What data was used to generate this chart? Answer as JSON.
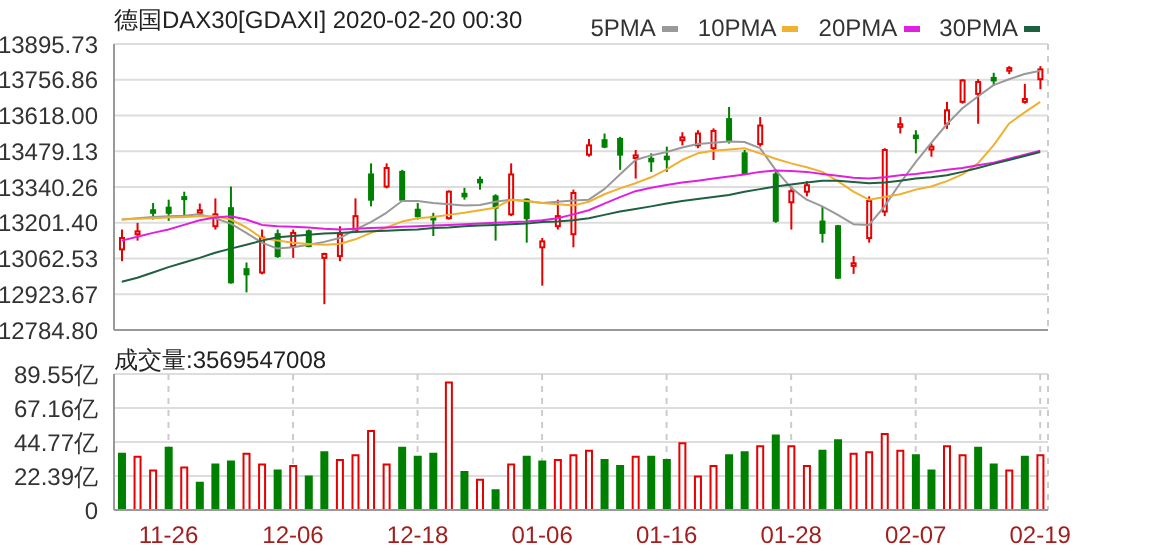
{
  "chart_data": [
    {
      "type": "candlestick",
      "title": "德国DAX30[GDAXI] 2020-02-20 00:30",
      "categories": [
        null,
        null,
        null,
        null,
        null,
        null,
        null,
        null,
        null,
        null,
        null,
        null,
        null,
        null,
        null,
        null,
        null,
        null,
        null,
        null,
        null,
        null,
        null,
        null,
        null,
        null,
        null,
        null,
        null,
        null,
        null,
        null,
        null,
        null,
        null,
        null,
        null,
        null,
        null,
        null,
        null,
        null,
        null,
        null,
        null,
        null,
        null,
        null,
        null,
        null,
        null,
        null,
        null,
        null,
        null,
        null,
        null,
        null,
        null,
        null
      ],
      "ohlc": [
        [
          13098,
          13175,
          13052,
          13142
        ],
        [
          13157,
          13201,
          13132,
          13168
        ],
        [
          13250,
          13278,
          13214,
          13240
        ],
        [
          13260,
          13291,
          13209,
          13240
        ],
        [
          13301,
          13322,
          13224,
          13294
        ],
        [
          13240,
          13276,
          13224,
          13250
        ],
        [
          13188,
          13296,
          13175,
          13234
        ],
        [
          13258,
          13342,
          12965,
          12970
        ],
        [
          13021,
          13047,
          12931,
          13001
        ],
        [
          13008,
          13175,
          13001,
          13144
        ],
        [
          13157,
          13175,
          13065,
          13072
        ],
        [
          13111,
          13175,
          13065,
          13162
        ],
        [
          13168,
          13175,
          13106,
          13111
        ],
        [
          13065,
          13085,
          12885,
          13080
        ],
        [
          13072,
          13188,
          13052,
          13157
        ],
        [
          13173,
          13296,
          13162,
          13227
        ],
        [
          13389,
          13432,
          13265,
          13291
        ],
        [
          13342,
          13432,
          13335,
          13414
        ],
        [
          13399,
          13407,
          13283,
          13291
        ],
        [
          13252,
          13278,
          13214,
          13227
        ],
        [
          13224,
          13240,
          13150,
          13214
        ],
        [
          13219,
          13327,
          13214,
          13322
        ],
        [
          13314,
          13337,
          13291,
          13304
        ],
        [
          13368,
          13381,
          13330,
          13358
        ],
        [
          13304,
          13312,
          13132,
          13260
        ],
        [
          13234,
          13432,
          13227,
          13389
        ],
        [
          13291,
          13296,
          13124,
          13219
        ],
        [
          13106,
          13142,
          12957,
          13129
        ],
        [
          13188,
          13291,
          13175,
          13227
        ],
        [
          13157,
          13330,
          13106,
          13317
        ],
        [
          13466,
          13527,
          13458,
          13502
        ],
        [
          13522,
          13548,
          13491,
          13497
        ],
        [
          13527,
          13535,
          13407,
          13466
        ],
        [
          13453,
          13484,
          13373,
          13463
        ],
        [
          13450,
          13471,
          13399,
          13440
        ],
        [
          13458,
          13497,
          13399,
          13448
        ],
        [
          13522,
          13553,
          13502,
          13533
        ],
        [
          13502,
          13561,
          13491,
          13548
        ],
        [
          13491,
          13568,
          13445,
          13558
        ],
        [
          13604,
          13651,
          13509,
          13522
        ],
        [
          13471,
          13484,
          13389,
          13394
        ],
        [
          13507,
          13612,
          13497,
          13579
        ],
        [
          13389,
          13399,
          13201,
          13209
        ],
        [
          13281,
          13342,
          13175,
          13324
        ],
        [
          13322,
          13363,
          13304,
          13347
        ],
        [
          13206,
          13265,
          13124,
          13162
        ],
        [
          13188,
          13193,
          12983,
          12988
        ],
        [
          13034,
          13072,
          13003,
          13044
        ],
        [
          13142,
          13304,
          13124,
          13286
        ],
        [
          13245,
          13491,
          13227,
          13484
        ],
        [
          13574,
          13612,
          13548,
          13584
        ],
        [
          13540,
          13561,
          13471,
          13530
        ],
        [
          13486,
          13509,
          13458,
          13497
        ],
        [
          13586,
          13671,
          13566,
          13638
        ],
        [
          13671,
          13759,
          13664,
          13754
        ],
        [
          13702,
          13759,
          13586,
          13748
        ],
        [
          13764,
          13784,
          13733,
          13754
        ],
        [
          13792,
          13810,
          13779,
          13802
        ],
        [
          13671,
          13741,
          13664,
          13682
        ],
        [
          13759,
          13810,
          13720,
          13797
        ]
      ],
      "colors": [
        "#e60000",
        "#e60000",
        "#008000",
        "#008000",
        "#008000",
        "#e60000",
        "#e60000",
        "#008000",
        "#008000",
        "#e60000",
        "#008000",
        "#e60000",
        "#008000",
        "#e60000",
        "#e60000",
        "#e60000",
        "#008000",
        "#e60000",
        "#008000",
        "#008000",
        "#008000",
        "#e60000",
        "#008000",
        "#008000",
        "#008000",
        "#e60000",
        "#008000",
        "#e60000",
        "#e60000",
        "#e60000",
        "#e60000",
        "#008000",
        "#008000",
        "#e60000",
        "#008000",
        "#008000",
        "#e60000",
        "#e60000",
        "#e60000",
        "#008000",
        "#008000",
        "#e60000",
        "#008000",
        "#e60000",
        "#e60000",
        "#008000",
        "#008000",
        "#e60000",
        "#e60000",
        "#e60000",
        "#e60000",
        "#008000",
        "#e60000",
        "#e60000",
        "#e60000",
        "#e60000",
        "#008000",
        "#e60000",
        "#e60000",
        "#e60000"
      ],
      "series": [
        {
          "name": "5PMA",
          "type": "line",
          "color": "#999999",
          "values": [
            13214,
            13219,
            13224,
            13227,
            13229,
            13234,
            13219,
            13198,
            13162,
            13124,
            13101,
            13106,
            13116,
            13127,
            13142,
            13175,
            13204,
            13240,
            13286,
            13286,
            13278,
            13273,
            13268,
            13270,
            13283,
            13291,
            13286,
            13278,
            13283,
            13288,
            13291,
            13332,
            13389,
            13445,
            13463,
            13476,
            13494,
            13507,
            13512,
            13517,
            13515,
            13491,
            13407,
            13337,
            13291,
            13265,
            13232,
            13196,
            13193,
            13265,
            13355,
            13437,
            13512,
            13584,
            13646,
            13692,
            13736,
            13759,
            13779,
            13792
          ]
        },
        {
          "name": "10PMA",
          "type": "line",
          "color": "#f0b030",
          "values": [
            13214,
            13217,
            13219,
            13222,
            13224,
            13227,
            13227,
            13214,
            13183,
            13142,
            13132,
            13124,
            13119,
            13116,
            13119,
            13137,
            13162,
            13183,
            13206,
            13219,
            13224,
            13232,
            13240,
            13250,
            13260,
            13291,
            13286,
            13278,
            13273,
            13268,
            13283,
            13312,
            13335,
            13355,
            13378,
            13409,
            13445,
            13471,
            13481,
            13486,
            13491,
            13471,
            13450,
            13432,
            13417,
            13399,
            13363,
            13322,
            13291,
            13301,
            13312,
            13330,
            13342,
            13363,
            13389,
            13432,
            13502,
            13587,
            13630,
            13671
          ]
        },
        {
          "name": "20PMA",
          "type": "line",
          "color": "#e020e0",
          "values": [
            13132,
            13147,
            13162,
            13175,
            13193,
            13211,
            13222,
            13227,
            13214,
            13193,
            13188,
            13186,
            13183,
            13178,
            13175,
            13178,
            13181,
            13183,
            13186,
            13188,
            13191,
            13193,
            13196,
            13198,
            13201,
            13204,
            13206,
            13211,
            13219,
            13234,
            13250,
            13276,
            13301,
            13324,
            13337,
            13348,
            13358,
            13365,
            13373,
            13381,
            13389,
            13399,
            13404,
            13402,
            13399,
            13391,
            13384,
            13376,
            13373,
            13378,
            13386,
            13391,
            13399,
            13407,
            13414,
            13425,
            13435,
            13450,
            13466,
            13481
          ]
        },
        {
          "name": "30PMA",
          "type": "line",
          "color": "#1e6040",
          "values": [
            12972,
            12988,
            13008,
            13029,
            13047,
            13065,
            13085,
            13101,
            13116,
            13132,
            13145,
            13150,
            13155,
            13160,
            13162,
            13165,
            13168,
            13170,
            13173,
            13175,
            13181,
            13183,
            13188,
            13191,
            13193,
            13196,
            13198,
            13204,
            13206,
            13211,
            13219,
            13232,
            13245,
            13255,
            13265,
            13276,
            13286,
            13294,
            13301,
            13309,
            13322,
            13332,
            13342,
            13350,
            13358,
            13365,
            13365,
            13360,
            13355,
            13358,
            13365,
            13373,
            13378,
            13386,
            13399,
            13414,
            13430,
            13445,
            13461,
            13476
          ]
        }
      ],
      "ylim": [
        12784.8,
        13895.73
      ],
      "yticks": [
        {
          "value": 12784.8,
          "label": "12784.80"
        },
        12923.67,
        13062.53,
        {
          "value": 13201.4,
          "label": "13201.40"
        },
        13340.26,
        13479.13,
        {
          "value": 13618,
          "label": "13618.00"
        },
        13756.86,
        13895.73
      ],
      "grid": true,
      "legend": "top right",
      "tick_labels": "y"
    },
    {
      "type": "bar",
      "title": "成交量:3569547008",
      "categories": [
        null,
        null,
        null,
        "11-26",
        null,
        null,
        null,
        null,
        null,
        null,
        null,
        "12-06",
        null,
        null,
        null,
        null,
        null,
        null,
        null,
        "12-18",
        null,
        null,
        null,
        null,
        null,
        null,
        null,
        "01-06",
        null,
        null,
        null,
        null,
        null,
        null,
        null,
        "01-16",
        null,
        null,
        null,
        null,
        null,
        null,
        null,
        "01-28",
        null,
        null,
        null,
        null,
        null,
        null,
        null,
        "02-07",
        null,
        null,
        null,
        null,
        null,
        null,
        null,
        "02-19"
      ],
      "values": [
        37,
        35,
        26,
        41,
        28,
        18,
        30,
        32,
        37,
        30,
        26,
        29,
        22,
        38,
        33,
        36,
        52,
        30,
        41,
        35,
        37,
        84,
        25,
        20,
        13,
        30,
        35,
        32,
        33,
        36,
        39,
        33,
        29,
        35,
        35,
        33,
        44,
        22,
        29,
        36,
        38,
        42,
        49,
        42,
        29,
        39,
        46,
        37,
        38,
        50,
        39,
        36,
        26,
        42,
        36,
        41,
        30,
        26,
        35,
        36
      ],
      "colors": [
        "#008000",
        "#e60000",
        "#e60000",
        "#008000",
        "#e60000",
        "#008000",
        "#008000",
        "#008000",
        "#e60000",
        "#e60000",
        "#008000",
        "#e60000",
        "#008000",
        "#008000",
        "#e60000",
        "#e60000",
        "#e60000",
        "#e60000",
        "#008000",
        "#008000",
        "#008000",
        "#e60000",
        "#008000",
        "#e60000",
        "#008000",
        "#e60000",
        "#008000",
        "#008000",
        "#e60000",
        "#e60000",
        "#e60000",
        "#008000",
        "#008000",
        "#e60000",
        "#008000",
        "#008000",
        "#e60000",
        "#e60000",
        "#e60000",
        "#008000",
        "#008000",
        "#e60000",
        "#008000",
        "#e60000",
        "#e60000",
        "#008000",
        "#008000",
        "#e60000",
        "#e60000",
        "#e60000",
        "#e60000",
        "#008000",
        "#008000",
        "#e60000",
        "#e60000",
        "#008000",
        "#008000",
        "#e60000",
        "#008000",
        "#e60000"
      ],
      "ylim": [
        0,
        89.55
      ],
      "yticks": [
        0,
        {
          "value": 22.39,
          "label": "22.39亿"
        },
        {
          "value": 44.77,
          "label": "44.77亿"
        },
        {
          "value": 67.16,
          "label": "67.16亿"
        },
        {
          "value": 89.55,
          "label": "89.55亿"
        }
      ],
      "grid": true
    }
  ]
}
